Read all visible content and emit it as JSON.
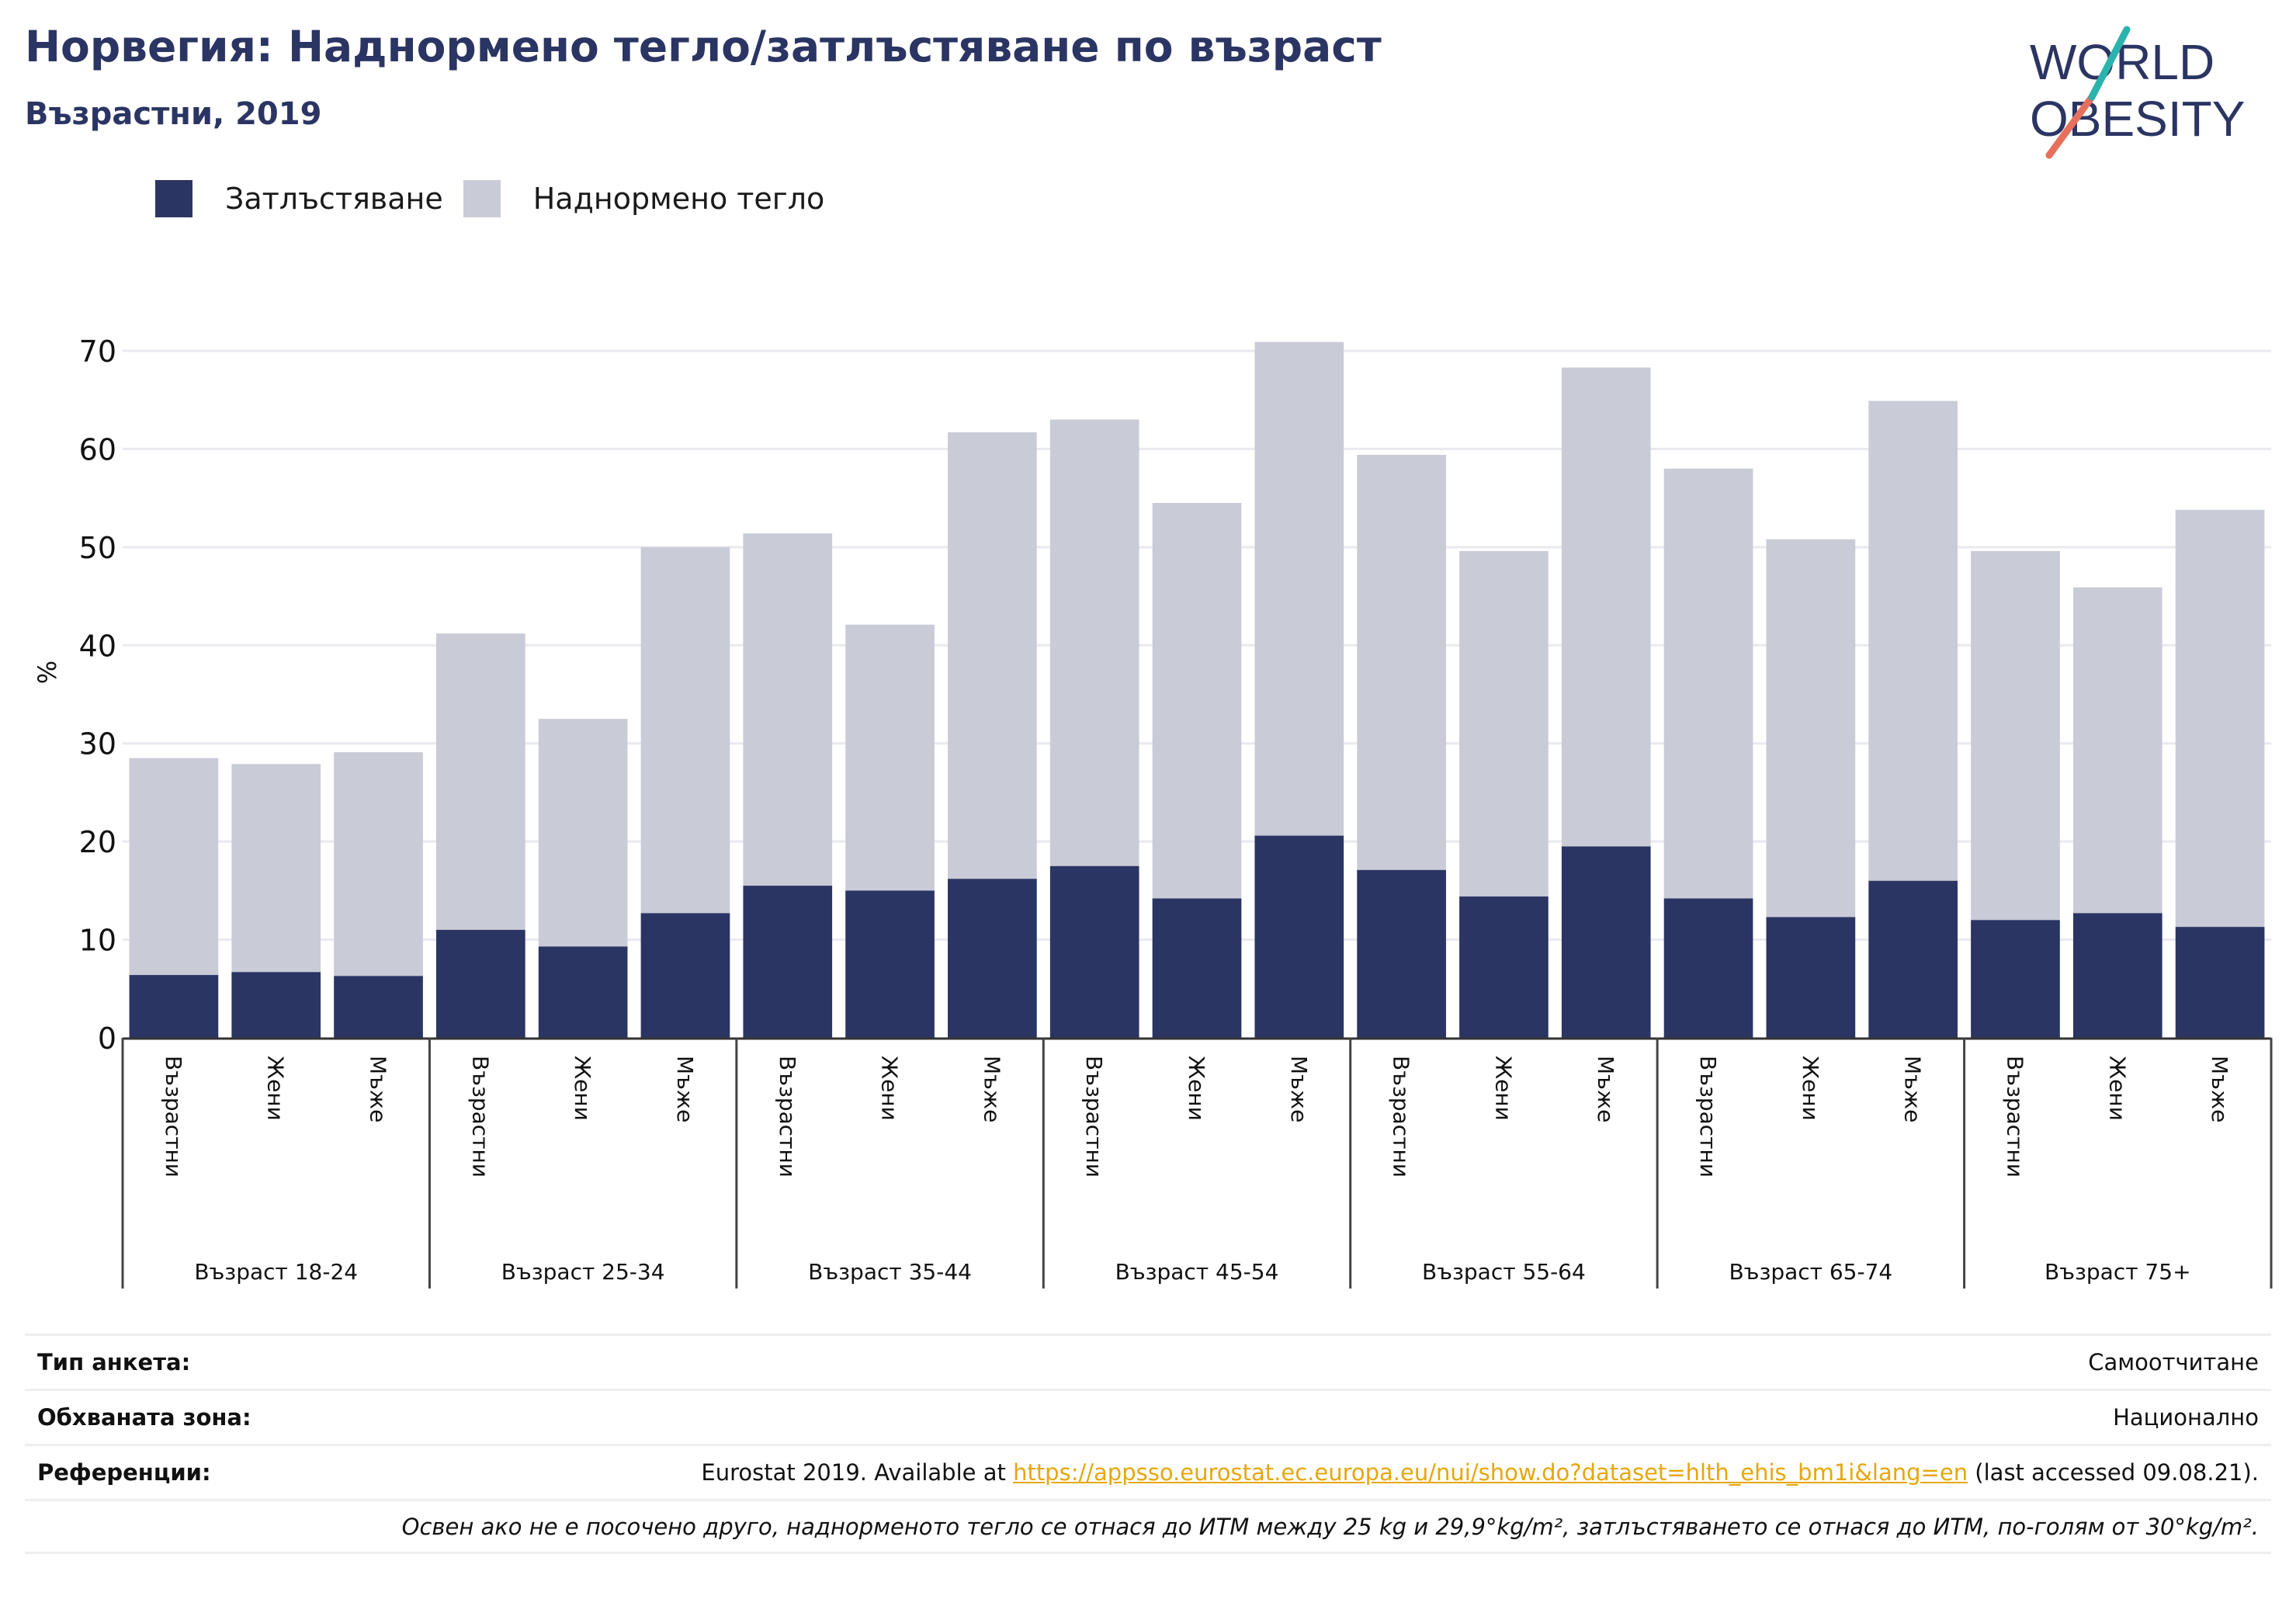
{
  "header": {
    "title": "Норвегия: Наднормено тегло/затлъстяване по възраст",
    "subtitle": "Възрастни, 2019"
  },
  "logo": {
    "line1": "WORLD",
    "line2": "OBESITY"
  },
  "legend": [
    {
      "label": "Затлъстяване",
      "color": "#2b3563"
    },
    {
      "label": "Наднормено тегло",
      "color": "#c9cbd7"
    }
  ],
  "chart_data": {
    "type": "bar",
    "stacked": true,
    "ylabel": "%",
    "ylim": [
      0,
      70
    ],
    "yticks": [
      0,
      10,
      20,
      30,
      40,
      50,
      60,
      70
    ],
    "grid": true,
    "legend_position": "top-left",
    "groups": [
      "Възраст 18-24",
      "Възраст 25-34",
      "Възраст 35-44",
      "Възраст 45-54",
      "Възраст 55-64",
      "Възраст 65-74",
      "Възраст 75+"
    ],
    "subcategories": [
      "Възрастни",
      "Жени",
      "Мъже"
    ],
    "series": [
      {
        "name": "Затлъстяване",
        "color": "#2b3563",
        "values": [
          6.4,
          6.7,
          6.3,
          11.0,
          9.3,
          12.7,
          15.5,
          15.0,
          16.2,
          17.5,
          14.2,
          20.6,
          17.1,
          14.4,
          19.5,
          14.2,
          12.3,
          16.0,
          12.0,
          12.7,
          11.3
        ]
      },
      {
        "name": "Наднормено тегло",
        "color": "#c9cbd7",
        "values": [
          22.1,
          21.2,
          22.8,
          30.2,
          23.2,
          37.3,
          35.9,
          27.1,
          45.5,
          45.5,
          40.3,
          50.3,
          42.3,
          35.2,
          48.8,
          43.8,
          38.5,
          48.9,
          37.6,
          33.2,
          42.5
        ]
      }
    ]
  },
  "info": {
    "survey_key": "Тип анкета:",
    "survey_val": "Самоотчитане",
    "area_key": "Обхваната зона:",
    "area_val": "Национално",
    "ref_key": "Референции:",
    "ref_prefix": "Eurostat 2019. Available at ",
    "ref_link": "https://appsso.eurostat.ec.europa.eu/nui/show.do?dataset=hlth_ehis_bm1i&lang=en",
    "ref_suffix": " (last accessed 09.08.21).",
    "note": "Освен ако не е посочено друго, наднорменото тегло се отнася до ИТМ между 25 kg и 29,9°kg/m², затлъстяването се отнася до ИТМ, по-голям от 30°kg/m²."
  }
}
